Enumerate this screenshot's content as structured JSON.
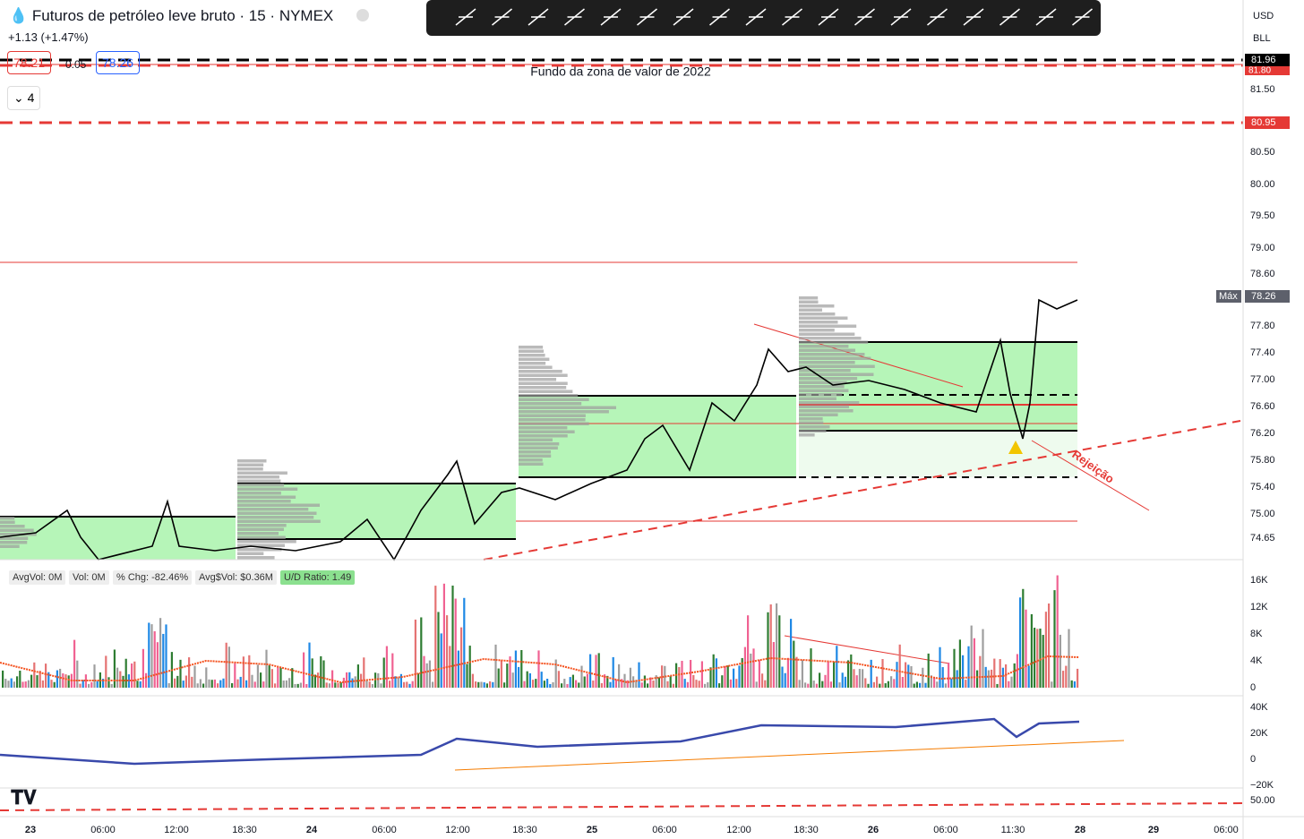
{
  "header": {
    "title": "Futuros de petróleo leve bruto · 15 · NYMEX",
    "change": "+1.13 (+1.47%)",
    "bid": "78.21",
    "spread": "0.05",
    "ask": "78.26",
    "collapse_count": "4"
  },
  "annotations": {
    "zone": "Fundo da zona de valor de 2022",
    "rejection": "Rejeição"
  },
  "price_axis": {
    "currency": "USD",
    "unit": "BLL",
    "labels": [
      "81.50",
      "80.50",
      "80.00",
      "79.50",
      "79.00",
      "78.60",
      "77.80",
      "77.40",
      "77.00",
      "76.60",
      "76.20",
      "75.80",
      "75.40",
      "75.00",
      "74.65"
    ],
    "hidden_label": "81.80",
    "black_marker": "81.96",
    "red_marker": "80.95",
    "max_tag": "Máx",
    "max_value": "78.26"
  },
  "volume_pane": {
    "stats": [
      "AvgVol: 0M",
      "Vol: 0M",
      "% Chg: -82.46%",
      "Avg$Vol: $0.36M"
    ],
    "ud_ratio": "U/D Ratio: 1.49",
    "axis": [
      "16K",
      "12K",
      "8K",
      "4K",
      "0"
    ]
  },
  "oscillator_pane": {
    "axis": [
      "40K",
      "20K",
      "0",
      "−20K"
    ]
  },
  "bottom_pane": {
    "axis": "50.00"
  },
  "time_axis": [
    "23",
    "06:00",
    "12:00",
    "18:30",
    "24",
    "06:00",
    "12:00",
    "18:30",
    "25",
    "06:00",
    "12:00",
    "18:30",
    "26",
    "06:00",
    "11:30",
    "28",
    "29",
    "06:00"
  ]
}
